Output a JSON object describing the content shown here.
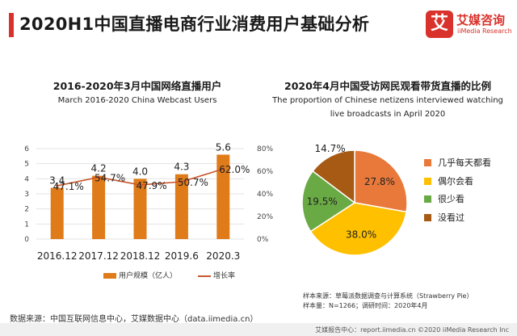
{
  "page_title": "2020H1中国直播电商行业消费用户基础分析",
  "logo": {
    "mark": "艾",
    "cn": "艾媒咨询",
    "en": "iiMedia Research"
  },
  "left_chart": {
    "title": "2016-2020年3月中国网络直播用户",
    "subtitle": "March 2016-2020 China Webcast Users"
  },
  "right_chart": {
    "title": "2020年4月中国受访网民观看带货直播的比例",
    "subtitle": "The proportion of Chinese netizens interviewed watching live broadcasts in April 2020"
  },
  "legend": {
    "bar": "用户规模（亿人）",
    "line": "增长率"
  },
  "notes": {
    "source_line": "样本来源：草莓派数据调查与计算系统（Strawberry Pie）",
    "sample_line": "样本量：N=1266；调研时间：2020年4月"
  },
  "source": "数据来源：中国互联网信息中心，艾媒数据中心（data.iimedia.cn）",
  "footer": "艾媒报告中心：report.iimedia.cn  ©2020  iiMedia Research  Inc",
  "colors": {
    "accent": "#d9312b",
    "bar": "#e07b1a",
    "line": "#c9562d"
  },
  "chart_data": [
    {
      "type": "bar",
      "categories": [
        "2016.12",
        "2017.12",
        "2018.12",
        "2019.6",
        "2020.3"
      ],
      "series": [
        {
          "name": "用户规模（亿人）",
          "type": "bar",
          "axis": "left",
          "values": [
            3.4,
            4.2,
            4.0,
            4.3,
            5.6
          ],
          "labels": [
            "3.4",
            "4.2",
            "4.0",
            "4.3",
            "5.6"
          ]
        },
        {
          "name": "增长率",
          "type": "line",
          "axis": "right",
          "values": [
            47.1,
            54.7,
            47.9,
            50.7,
            62.0
          ],
          "labels": [
            "47.1%",
            "54.7%",
            "47.9%",
            "50.7%",
            "62.0%"
          ]
        }
      ],
      "y_left": {
        "ylim": [
          0,
          6
        ],
        "ticks": [
          "0",
          "1",
          "2",
          "3",
          "4",
          "5",
          "6"
        ]
      },
      "y_right": {
        "ylim": [
          0,
          80
        ],
        "ticks": [
          "0%",
          "20%",
          "40%",
          "60%",
          "80%"
        ]
      },
      "grid": true,
      "legend": "bottom"
    },
    {
      "type": "pie",
      "slices": [
        {
          "name": "几乎每天都看",
          "value": 27.8,
          "label": "27.8%",
          "color": "#e8793a"
        },
        {
          "name": "偶尔会看",
          "value": 38.0,
          "label": "38.0%",
          "color": "#ffc000"
        },
        {
          "name": "很少看",
          "value": 19.5,
          "label": "19.5%",
          "color": "#6aaa45"
        },
        {
          "name": "没看过",
          "value": 14.7,
          "label": "14.7%",
          "color": "#a65a14"
        }
      ],
      "legend": "right"
    }
  ]
}
